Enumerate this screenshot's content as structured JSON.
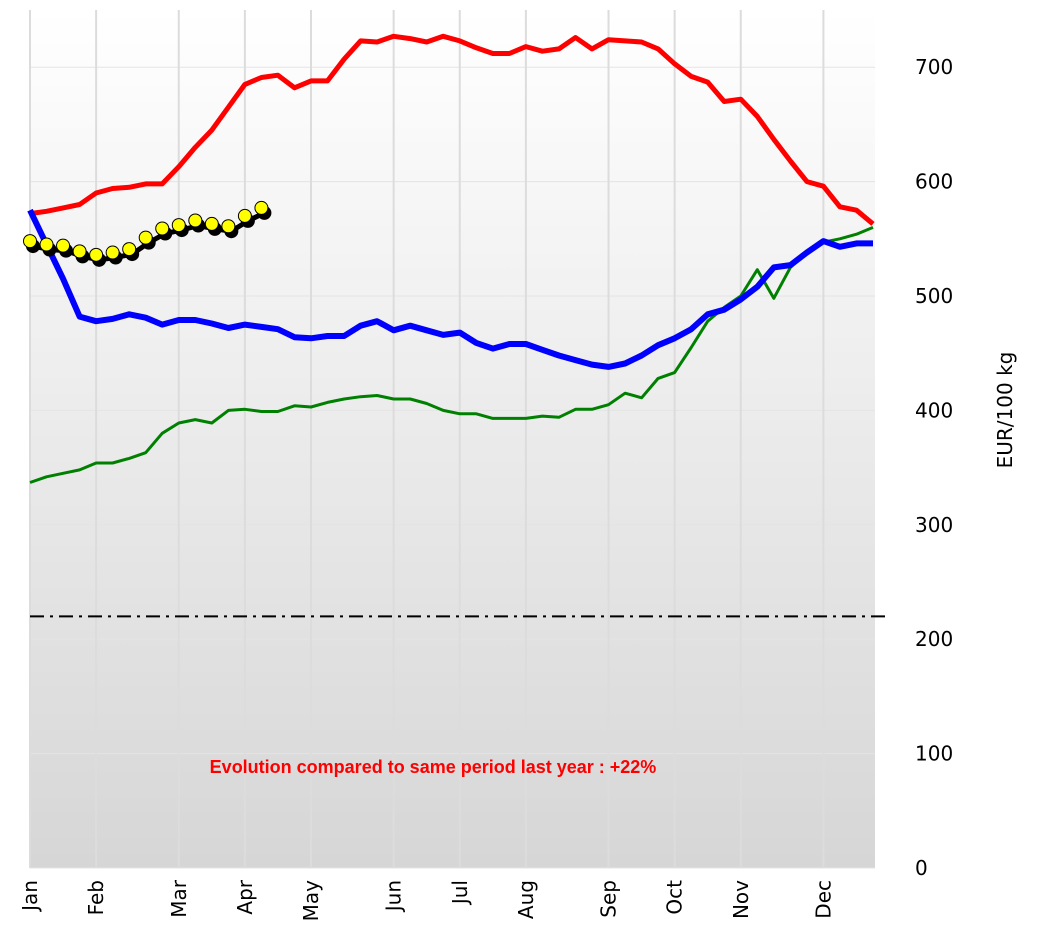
{
  "chart_data": {
    "type": "line",
    "annotation": "Evolution compared to same period last year : +22%",
    "y_label": "EUR/100 kg",
    "categories": [
      "Jan",
      null,
      null,
      null,
      "Feb",
      null,
      null,
      null,
      null,
      "Mar",
      null,
      null,
      null,
      "Apr",
      null,
      null,
      null,
      "May",
      null,
      null,
      null,
      null,
      "Jun",
      null,
      null,
      null,
      "Jul",
      null,
      null,
      null,
      "Aug",
      null,
      null,
      null,
      null,
      "Sep",
      null,
      null,
      null,
      "Oct",
      null,
      null,
      null,
      "Nov",
      null,
      null,
      null,
      null,
      "Dec",
      null,
      null,
      null
    ],
    "ylim": [
      0,
      750
    ],
    "yticks": [
      0,
      100,
      200,
      300,
      400,
      500,
      600,
      700
    ],
    "grid": true,
    "y_axis_side": "right",
    "reference_lines": [
      {
        "value": 220,
        "color": "#000000",
        "dash": "dashdot"
      }
    ],
    "series": [
      {
        "color": "#ff0000",
        "width": 5,
        "values": [
          572,
          574,
          577,
          580,
          590,
          594,
          595,
          598,
          598,
          613,
          630,
          645,
          665,
          685,
          691,
          693,
          682,
          688,
          688,
          707,
          723,
          722,
          727,
          725,
          722,
          727,
          723,
          717,
          712,
          712,
          718,
          714,
          716,
          726,
          716,
          724,
          723,
          722,
          716,
          703,
          692,
          687,
          670,
          672,
          657,
          637,
          618,
          600,
          596,
          578,
          575,
          563
        ]
      },
      {
        "color": "#0000ff",
        "width": 6,
        "values": [
          575,
          545,
          515,
          482,
          478,
          480,
          484,
          481,
          475,
          479,
          479,
          476,
          472,
          475,
          473,
          471,
          464,
          463,
          465,
          465,
          474,
          478,
          470,
          474,
          470,
          466,
          468,
          459,
          454,
          458,
          458,
          453,
          448,
          444,
          440,
          438,
          441,
          448,
          457,
          463,
          471,
          484,
          488,
          497,
          508,
          525,
          527,
          538,
          548,
          543,
          546,
          546
        ]
      },
      {
        "color": "#008000",
        "width": 3,
        "values": [
          337,
          342,
          345,
          348,
          354,
          354,
          358,
          363,
          380,
          389,
          392,
          389,
          400,
          401,
          399,
          399,
          404,
          403,
          407,
          410,
          412,
          413,
          410,
          410,
          406,
          400,
          397,
          397,
          393,
          393,
          393,
          395,
          394,
          401,
          401,
          405,
          415,
          411,
          428,
          433,
          455,
          478,
          490,
          500,
          523,
          498,
          525,
          538,
          547,
          550,
          554,
          560
        ]
      },
      {
        "color": "#ffff00",
        "marker": "dot",
        "values": [
          548,
          545,
          544,
          539,
          536,
          538,
          541,
          551,
          559,
          562,
          566,
          563,
          561,
          570,
          577,
          null,
          null,
          null,
          null,
          null,
          null,
          null,
          null,
          null,
          null,
          null,
          null,
          null,
          null,
          null,
          null,
          null,
          null,
          null,
          null,
          null,
          null,
          null,
          null,
          null,
          null,
          null,
          null,
          null,
          null,
          null,
          null,
          null,
          null,
          null,
          null,
          null
        ]
      }
    ]
  }
}
